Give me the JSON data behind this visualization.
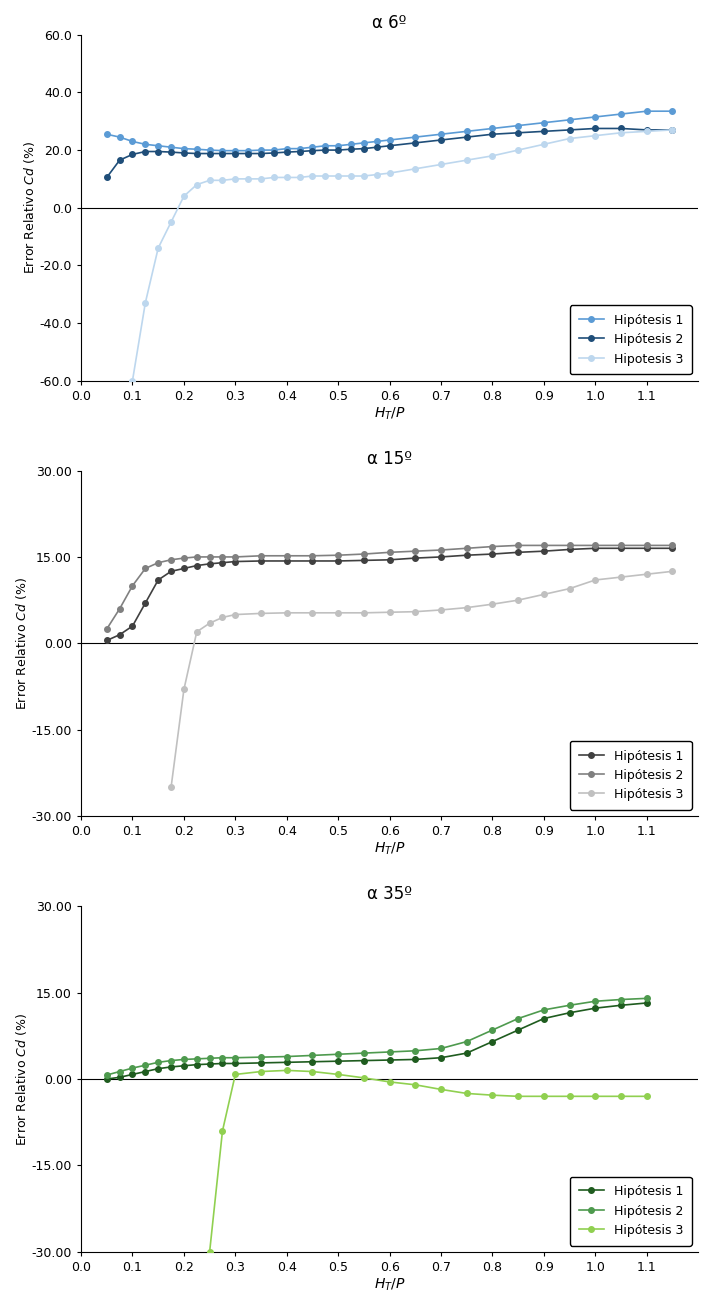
{
  "charts": [
    {
      "title": "α 6º",
      "ylim": [
        -60.0,
        60.0
      ],
      "yticks": [
        -60.0,
        -40.0,
        -20.0,
        0.0,
        20.0,
        40.0,
        60.0
      ],
      "ytick_labels": [
        "-60.0",
        "-40.0",
        "-20.0",
        "0.0",
        "20.0",
        "40.0",
        "60.0"
      ],
      "colors": [
        "#5B9BD5",
        "#1F4E79",
        "#BDD7EE"
      ],
      "legend_labels": [
        "Hipótesis 1",
        "Hipótesis 2",
        "Hipotesis 3"
      ],
      "series": [
        {
          "x": [
            0.05,
            0.075,
            0.1,
            0.125,
            0.15,
            0.175,
            0.2,
            0.225,
            0.25,
            0.275,
            0.3,
            0.325,
            0.35,
            0.375,
            0.4,
            0.425,
            0.45,
            0.475,
            0.5,
            0.525,
            0.55,
            0.575,
            0.6,
            0.65,
            0.7,
            0.75,
            0.8,
            0.85,
            0.9,
            0.95,
            1.0,
            1.05,
            1.1,
            1.15
          ],
          "y": [
            25.5,
            24.5,
            23.0,
            22.0,
            21.5,
            21.0,
            20.5,
            20.3,
            20.0,
            19.8,
            19.8,
            19.8,
            20.0,
            20.0,
            20.5,
            20.5,
            21.0,
            21.5,
            21.5,
            22.0,
            22.5,
            23.0,
            23.5,
            24.5,
            25.5,
            26.5,
            27.5,
            28.5,
            29.5,
            30.5,
            31.5,
            32.5,
            33.5,
            33.5
          ]
        },
        {
          "x": [
            0.05,
            0.075,
            0.1,
            0.125,
            0.15,
            0.175,
            0.2,
            0.225,
            0.25,
            0.275,
            0.3,
            0.325,
            0.35,
            0.375,
            0.4,
            0.425,
            0.45,
            0.475,
            0.5,
            0.525,
            0.55,
            0.575,
            0.6,
            0.65,
            0.7,
            0.75,
            0.8,
            0.85,
            0.9,
            0.95,
            1.0,
            1.05,
            1.1,
            1.15
          ],
          "y": [
            10.5,
            16.5,
            18.5,
            19.5,
            19.5,
            19.3,
            19.0,
            18.8,
            18.8,
            18.8,
            18.8,
            18.8,
            18.8,
            19.0,
            19.3,
            19.5,
            19.8,
            20.0,
            20.0,
            20.3,
            20.5,
            21.0,
            21.5,
            22.5,
            23.5,
            24.5,
            25.5,
            26.0,
            26.5,
            27.0,
            27.5,
            27.5,
            27.0,
            27.0
          ]
        },
        {
          "x": [
            0.1,
            0.125,
            0.15,
            0.175,
            0.2,
            0.225,
            0.25,
            0.275,
            0.3,
            0.325,
            0.35,
            0.375,
            0.4,
            0.425,
            0.45,
            0.475,
            0.5,
            0.525,
            0.55,
            0.575,
            0.6,
            0.65,
            0.7,
            0.75,
            0.8,
            0.85,
            0.9,
            0.95,
            1.0,
            1.05,
            1.1,
            1.15
          ],
          "y": [
            -60.0,
            -33.0,
            -14.0,
            -5.0,
            4.0,
            8.0,
            9.5,
            9.5,
            10.0,
            10.0,
            10.0,
            10.5,
            10.5,
            10.5,
            11.0,
            11.0,
            11.0,
            11.0,
            11.0,
            11.5,
            12.0,
            13.5,
            15.0,
            16.5,
            18.0,
            20.0,
            22.0,
            24.0,
            25.0,
            26.0,
            26.5,
            27.0
          ]
        }
      ]
    },
    {
      "title": "α 15º",
      "ylim": [
        -30.0,
        30.0
      ],
      "yticks": [
        -30.0,
        -15.0,
        0.0,
        15.0,
        30.0
      ],
      "ytick_labels": [
        "-30.00",
        "-15.00",
        "0.00",
        "15.00",
        "30.00"
      ],
      "colors": [
        "#404040",
        "#808080",
        "#C0C0C0"
      ],
      "legend_labels": [
        "Hipótesis 1",
        "Hipótesis 2",
        "Hipótesis 3"
      ],
      "series": [
        {
          "x": [
            0.05,
            0.075,
            0.1,
            0.125,
            0.15,
            0.175,
            0.2,
            0.225,
            0.25,
            0.275,
            0.3,
            0.35,
            0.4,
            0.45,
            0.5,
            0.55,
            0.6,
            0.65,
            0.7,
            0.75,
            0.8,
            0.85,
            0.9,
            0.95,
            1.0,
            1.05,
            1.1,
            1.15
          ],
          "y": [
            0.5,
            1.5,
            3.0,
            7.0,
            11.0,
            12.5,
            13.0,
            13.5,
            13.8,
            14.0,
            14.2,
            14.3,
            14.3,
            14.3,
            14.3,
            14.4,
            14.5,
            14.8,
            15.0,
            15.3,
            15.5,
            15.8,
            16.0,
            16.3,
            16.5,
            16.5,
            16.5,
            16.5
          ]
        },
        {
          "x": [
            0.05,
            0.075,
            0.1,
            0.125,
            0.15,
            0.175,
            0.2,
            0.225,
            0.25,
            0.275,
            0.3,
            0.35,
            0.4,
            0.45,
            0.5,
            0.55,
            0.6,
            0.65,
            0.7,
            0.75,
            0.8,
            0.85,
            0.9,
            0.95,
            1.0,
            1.05,
            1.1,
            1.15
          ],
          "y": [
            2.5,
            6.0,
            10.0,
            13.0,
            14.0,
            14.5,
            14.8,
            15.0,
            15.0,
            15.0,
            15.0,
            15.2,
            15.2,
            15.2,
            15.3,
            15.5,
            15.8,
            16.0,
            16.2,
            16.5,
            16.8,
            17.0,
            17.0,
            17.0,
            17.0,
            17.0,
            17.0,
            17.0
          ]
        },
        {
          "x": [
            0.175,
            0.2,
            0.225,
            0.25,
            0.275,
            0.3,
            0.35,
            0.4,
            0.45,
            0.5,
            0.55,
            0.6,
            0.65,
            0.7,
            0.75,
            0.8,
            0.85,
            0.9,
            0.95,
            1.0,
            1.05,
            1.1,
            1.15
          ],
          "y": [
            -25.0,
            -8.0,
            2.0,
            3.5,
            4.5,
            5.0,
            5.2,
            5.3,
            5.3,
            5.3,
            5.3,
            5.4,
            5.5,
            5.8,
            6.2,
            6.8,
            7.5,
            8.5,
            9.5,
            11.0,
            11.5,
            12.0,
            12.5
          ]
        }
      ]
    },
    {
      "title": "α 35º",
      "ylim": [
        -30.0,
        30.0
      ],
      "yticks": [
        -30.0,
        -15.0,
        0.0,
        15.0,
        30.0
      ],
      "ytick_labels": [
        "-30.00",
        "-15.00",
        "0.00",
        "15.00",
        "30.00"
      ],
      "colors": [
        "#1F5C1F",
        "#4E9A4E",
        "#90D050"
      ],
      "legend_labels": [
        "Hipótesis 1",
        "Hipótesis 2",
        "Hipótesis 3"
      ],
      "series": [
        {
          "x": [
            0.05,
            0.075,
            0.1,
            0.125,
            0.15,
            0.175,
            0.2,
            0.225,
            0.25,
            0.275,
            0.3,
            0.35,
            0.4,
            0.45,
            0.5,
            0.55,
            0.6,
            0.65,
            0.7,
            0.75,
            0.8,
            0.85,
            0.9,
            0.95,
            1.0,
            1.05,
            1.1
          ],
          "y": [
            0.0,
            0.3,
            0.8,
            1.3,
            1.8,
            2.1,
            2.3,
            2.5,
            2.6,
            2.7,
            2.7,
            2.8,
            2.9,
            3.0,
            3.1,
            3.2,
            3.3,
            3.4,
            3.7,
            4.5,
            6.5,
            8.5,
            10.5,
            11.5,
            12.3,
            12.8,
            13.2
          ]
        },
        {
          "x": [
            0.05,
            0.075,
            0.1,
            0.125,
            0.15,
            0.175,
            0.2,
            0.225,
            0.25,
            0.275,
            0.3,
            0.35,
            0.4,
            0.45,
            0.5,
            0.55,
            0.6,
            0.65,
            0.7,
            0.75,
            0.8,
            0.85,
            0.9,
            0.95,
            1.0,
            1.05,
            1.1
          ],
          "y": [
            0.7,
            1.3,
            1.9,
            2.4,
            2.9,
            3.2,
            3.4,
            3.5,
            3.6,
            3.7,
            3.7,
            3.8,
            3.9,
            4.1,
            4.3,
            4.5,
            4.7,
            4.9,
            5.3,
            6.5,
            8.5,
            10.5,
            12.0,
            12.8,
            13.5,
            13.8,
            14.0
          ]
        },
        {
          "x": [
            0.25,
            0.275,
            0.3,
            0.35,
            0.4,
            0.45,
            0.5,
            0.55,
            0.6,
            0.65,
            0.7,
            0.75,
            0.8,
            0.85,
            0.9,
            0.95,
            1.0,
            1.05,
            1.1
          ],
          "y": [
            -30.0,
            -9.0,
            0.8,
            1.3,
            1.5,
            1.3,
            0.8,
            0.2,
            -0.5,
            -1.0,
            -1.8,
            -2.5,
            -2.8,
            -3.0,
            -3.0,
            -3.0,
            -3.0,
            -3.0,
            -3.0
          ]
        }
      ]
    }
  ],
  "xlabel": "$H_T/P$",
  "ylabel": "Error Relativo $Cd$ (%)",
  "xtick_values": [
    0.0,
    0.1,
    0.2,
    0.3,
    0.4,
    0.5,
    0.6,
    0.7,
    0.8,
    0.9,
    1.0,
    1.1
  ],
  "xtick_labels": [
    "0.0",
    "0.1",
    "0.2",
    "0.3",
    "0.4",
    "0.5",
    "0.6",
    "0.7",
    "0.8",
    "0.9",
    "1.0",
    "1.1"
  ],
  "xlim": [
    0.0,
    1.2
  ],
  "marker": "o",
  "markersize": 4,
  "linewidth": 1.2
}
